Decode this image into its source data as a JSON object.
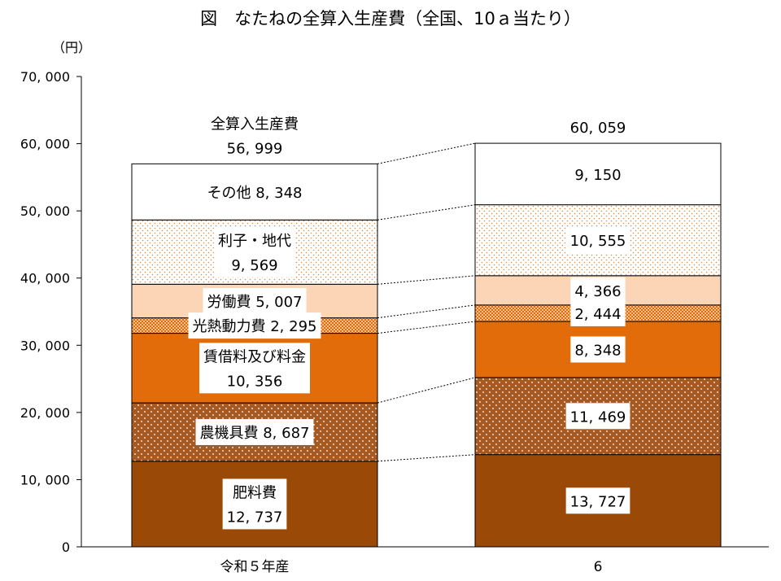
{
  "chart_data": {
    "type": "bar",
    "stacked": true,
    "title": "図　なたねの全算入生産費（全国、10ａ当たり）",
    "ylabel": "（円）",
    "ylim": [
      0,
      70000
    ],
    "ytick_values": [
      0,
      10000,
      20000,
      30000,
      40000,
      50000,
      60000,
      70000
    ],
    "ytick_labels": [
      "0",
      "10, 000",
      "20, 000",
      "30, 000",
      "40, 000",
      "50, 000",
      "60, 000",
      "70, 000"
    ],
    "categories": [
      "令和５年産",
      "6"
    ],
    "total_title": "全算入生産費",
    "totals": [
      56999,
      60059
    ],
    "total_labels": [
      "56, 999",
      "60, 059"
    ],
    "series": [
      {
        "name": "肥料費",
        "values": [
          12737,
          13727
        ],
        "color": "#9a4a06",
        "pattern": "solid",
        "labels": [
          [
            "肥料費",
            "12, 737"
          ],
          [
            "13, 727"
          ]
        ]
      },
      {
        "name": "農機具費",
        "values": [
          8687,
          11469
        ],
        "color": "#a65a22",
        "pattern": "dots-white",
        "labels": [
          [
            "農機具費  8, 687"
          ],
          [
            "11, 469"
          ]
        ]
      },
      {
        "name": "賃借料及び料金",
        "values": [
          10356,
          8348
        ],
        "color": "#e36c0a",
        "pattern": "solid",
        "labels": [
          [
            "賃借料及び料金",
            "10, 356"
          ],
          [
            "8, 348"
          ]
        ]
      },
      {
        "name": "光熱動力費",
        "values": [
          2295,
          2444
        ],
        "color": "#f0a260",
        "pattern": "checker",
        "labels": [
          [
            "光熱動力費  2, 295"
          ],
          [
            "2, 444"
          ]
        ]
      },
      {
        "name": "労働費",
        "values": [
          5007,
          4366
        ],
        "color": "#fbd5b5",
        "pattern": "solid",
        "labels": [
          [
            "労働費  5, 007"
          ],
          [
            "4, 366"
          ]
        ]
      },
      {
        "name": "利子・地代",
        "values": [
          9569,
          10555
        ],
        "color": "#ffffff",
        "pattern": "dots-orange",
        "labels": [
          [
            "利子・地代",
            "9, 569"
          ],
          [
            "10, 555"
          ]
        ]
      },
      {
        "name": "その他",
        "values": [
          8348,
          9150
        ],
        "color": "#ffffff",
        "pattern": "solid",
        "labels": [
          [
            "その他  8, 348"
          ],
          [
            "9, 150"
          ]
        ]
      }
    ]
  }
}
